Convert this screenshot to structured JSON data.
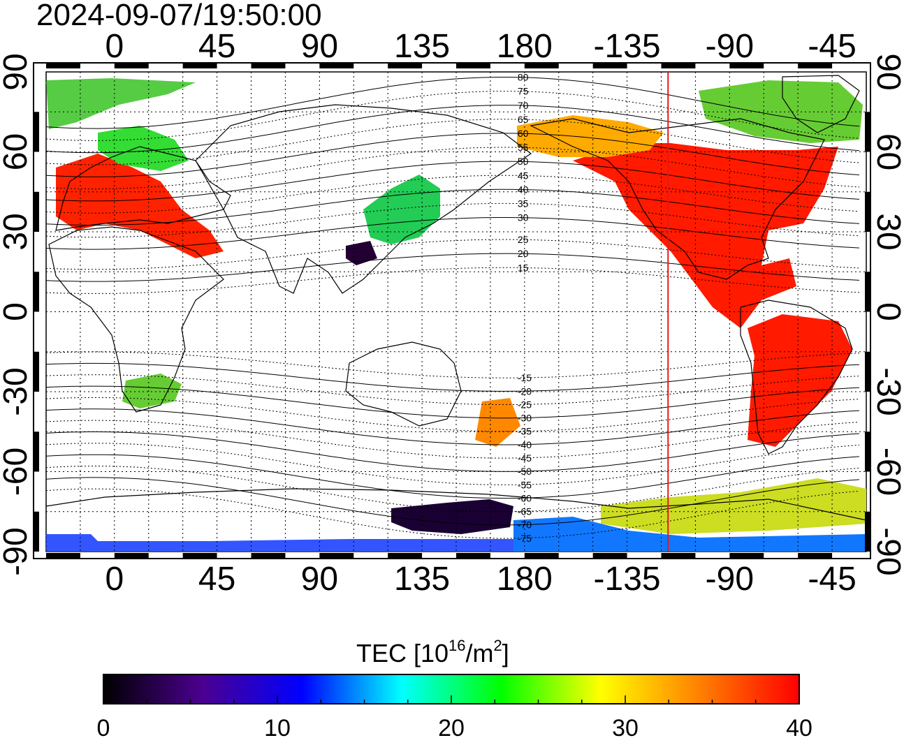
{
  "timestamp": "2024-09-07/19:50:00",
  "map": {
    "projection": "equirectangular",
    "center_longitude": 150,
    "lon_ticks": [
      0,
      45,
      90,
      135,
      180,
      -135,
      -90,
      -45
    ],
    "lat_ticks": [
      90,
      60,
      30,
      0,
      -30,
      -60,
      -90
    ],
    "grid": "dotted, every 15 degrees",
    "marker_longitude": -117,
    "marker_color": "#e41a1c",
    "magnetic_latitude_labels": [
      "80",
      "75",
      "70",
      "65",
      "60",
      "55",
      "50",
      "45",
      "40",
      "35",
      "30",
      "25",
      "20",
      "15",
      "-15",
      "-20",
      "-25",
      "-30",
      "-35",
      "-40",
      "-45",
      "-50",
      "-55",
      "-60",
      "-65",
      "-70",
      "-75"
    ]
  },
  "colorbar": {
    "label_main": "TEC  [10",
    "label_sup1": "16",
    "label_mid": "/m",
    "label_sup2": "2",
    "label_end": "]",
    "ticks": [
      "0",
      "10",
      "20",
      "30",
      "40"
    ],
    "min": 0,
    "max": 40,
    "colors": [
      "#000000",
      "#4b0090",
      "#0000ff",
      "#00ffff",
      "#00ff00",
      "#ffff00",
      "#ff8000",
      "#ff0000"
    ]
  },
  "tec_regions": [
    {
      "name": "north-america",
      "value": 40
    },
    {
      "name": "south-america",
      "value": 38
    },
    {
      "name": "europe",
      "value": 38
    },
    {
      "name": "east-asia",
      "value": 23
    },
    {
      "name": "arctic-greenland",
      "value": 25
    },
    {
      "name": "southern-ocean",
      "value": 12
    },
    {
      "name": "antarctic-peninsula",
      "value": 30
    }
  ]
}
